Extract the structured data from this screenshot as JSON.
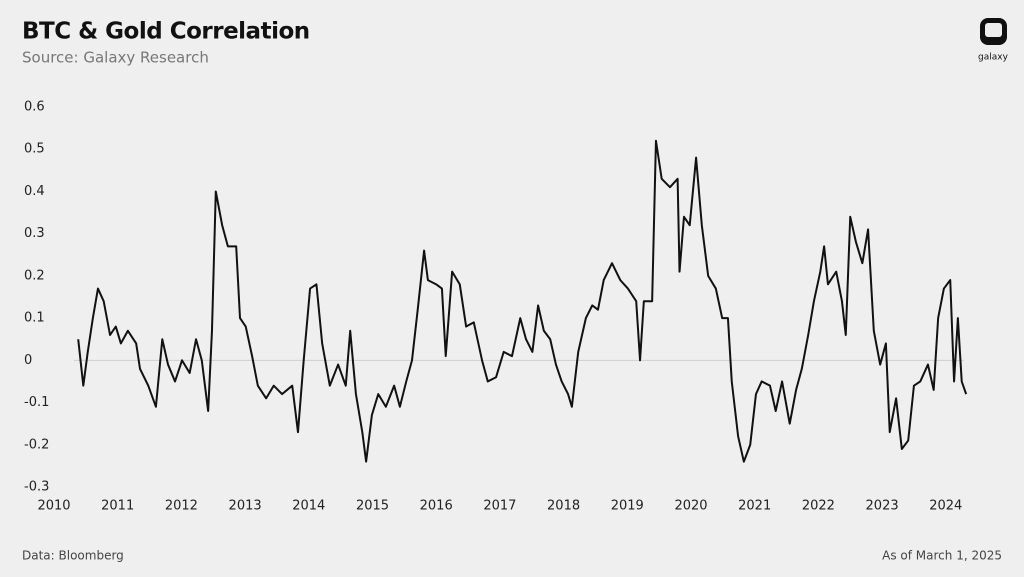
{
  "chart_data": {
    "type": "line",
    "title": "BTC & Gold Correlation",
    "subtitle": "Source: Galaxy Research",
    "footnote_left": "Data: Bloomberg",
    "footnote_right": "As of March 1, 2025",
    "brand": "galaxy",
    "color": "#111111",
    "xlim": [
      2010,
      2024.6
    ],
    "xticks": [
      2010,
      2011,
      2012,
      2013,
      2014,
      2015,
      2016,
      2017,
      2018,
      2019,
      2020,
      2021,
      2022,
      2023,
      2024
    ],
    "ylim": [
      -0.3,
      0.6
    ],
    "yticks": [
      0.6,
      0.5,
      0.4,
      0.3,
      0.2,
      0.1,
      0,
      -0.1,
      -0.2,
      -0.3
    ],
    "x": [
      2010.38,
      2010.46,
      2010.53,
      2010.61,
      2010.69,
      2010.78,
      2010.88,
      2010.97,
      2011.05,
      2011.16,
      2011.29,
      2011.35,
      2011.48,
      2011.6,
      2011.7,
      2011.79,
      2011.9,
      2012.01,
      2012.13,
      2012.23,
      2012.32,
      2012.42,
      2012.48,
      2012.54,
      2012.64,
      2012.73,
      2012.86,
      2012.92,
      2013.01,
      2013.11,
      2013.2,
      2013.33,
      2013.45,
      2013.58,
      2013.74,
      2013.83,
      2013.92,
      2014.02,
      2014.12,
      2014.21,
      2014.33,
      2014.46,
      2014.58,
      2014.65,
      2014.74,
      2014.84,
      2014.9,
      2014.99,
      2015.09,
      2015.21,
      2015.34,
      2015.43,
      2015.53,
      2015.62,
      2015.71,
      2015.81,
      2015.87,
      2016.0,
      2016.09,
      2016.15,
      2016.25,
      2016.37,
      2016.47,
      2016.59,
      2016.72,
      2016.81,
      2016.94,
      2017.06,
      2017.19,
      2017.32,
      2017.41,
      2017.51,
      2017.6,
      2017.69,
      2017.79,
      2017.88,
      2017.97,
      2018.07,
      2018.13,
      2018.23,
      2018.35,
      2018.45,
      2018.54,
      2018.63,
      2018.76,
      2018.89,
      2019.01,
      2019.14,
      2019.2,
      2019.26,
      2019.39,
      2019.45,
      2019.54,
      2019.67,
      2019.79,
      2019.82,
      2019.89,
      2019.98,
      2020.08,
      2020.17,
      2020.27,
      2020.39,
      2020.49,
      2020.58,
      2020.64,
      2020.74,
      2020.83,
      2020.93,
      2021.02,
      2021.11,
      2021.24,
      2021.33,
      2021.43,
      2021.55,
      2021.65,
      2021.74,
      2021.84,
      2021.93,
      2022.03,
      2022.09,
      2022.15,
      2022.28,
      2022.37,
      2022.43,
      2022.5,
      2022.59,
      2022.69,
      2022.78,
      2022.87,
      2022.97,
      2023.06,
      2023.12,
      2023.22,
      2023.31,
      2023.41,
      2023.5,
      2023.6,
      2023.72,
      2023.81,
      2023.88,
      2023.97,
      2024.07,
      2024.13,
      2024.19,
      2024.25,
      2024.32
    ],
    "values": [
      0.05,
      -0.06,
      0.02,
      0.1,
      0.17,
      0.14,
      0.06,
      0.08,
      0.04,
      0.07,
      0.04,
      -0.02,
      -0.06,
      -0.11,
      0.05,
      -0.01,
      -0.05,
      0.0,
      -0.03,
      0.05,
      0.0,
      -0.12,
      0.07,
      0.4,
      0.32,
      0.27,
      0.27,
      0.1,
      0.08,
      0.01,
      -0.06,
      -0.09,
      -0.06,
      -0.08,
      -0.06,
      -0.17,
      0.0,
      0.17,
      0.18,
      0.04,
      -0.06,
      -0.01,
      -0.06,
      0.07,
      -0.08,
      -0.17,
      -0.24,
      -0.13,
      -0.08,
      -0.11,
      -0.06,
      -0.11,
      -0.05,
      0.0,
      0.12,
      0.26,
      0.19,
      0.18,
      0.17,
      0.01,
      0.21,
      0.18,
      0.08,
      0.09,
      0.0,
      -0.05,
      -0.04,
      0.02,
      0.01,
      0.1,
      0.05,
      0.02,
      0.13,
      0.07,
      0.05,
      -0.01,
      -0.05,
      -0.08,
      -0.11,
      0.02,
      0.1,
      0.13,
      0.12,
      0.19,
      0.23,
      0.19,
      0.17,
      0.14,
      0.0,
      0.14,
      0.14,
      0.52,
      0.43,
      0.41,
      0.43,
      0.21,
      0.34,
      0.32,
      0.48,
      0.32,
      0.2,
      0.17,
      0.1,
      0.1,
      -0.05,
      -0.18,
      -0.24,
      -0.2,
      -0.08,
      -0.05,
      -0.06,
      -0.12,
      -0.05,
      -0.15,
      -0.07,
      -0.02,
      0.06,
      0.14,
      0.21,
      0.27,
      0.18,
      0.21,
      0.14,
      0.06,
      0.34,
      0.28,
      0.23,
      0.31,
      0.07,
      -0.01,
      0.04,
      -0.17,
      -0.09,
      -0.21,
      -0.19,
      -0.06,
      -0.05,
      -0.01,
      -0.07,
      0.1,
      0.17,
      0.19,
      -0.05,
      0.1,
      -0.05,
      -0.08
    ]
  }
}
